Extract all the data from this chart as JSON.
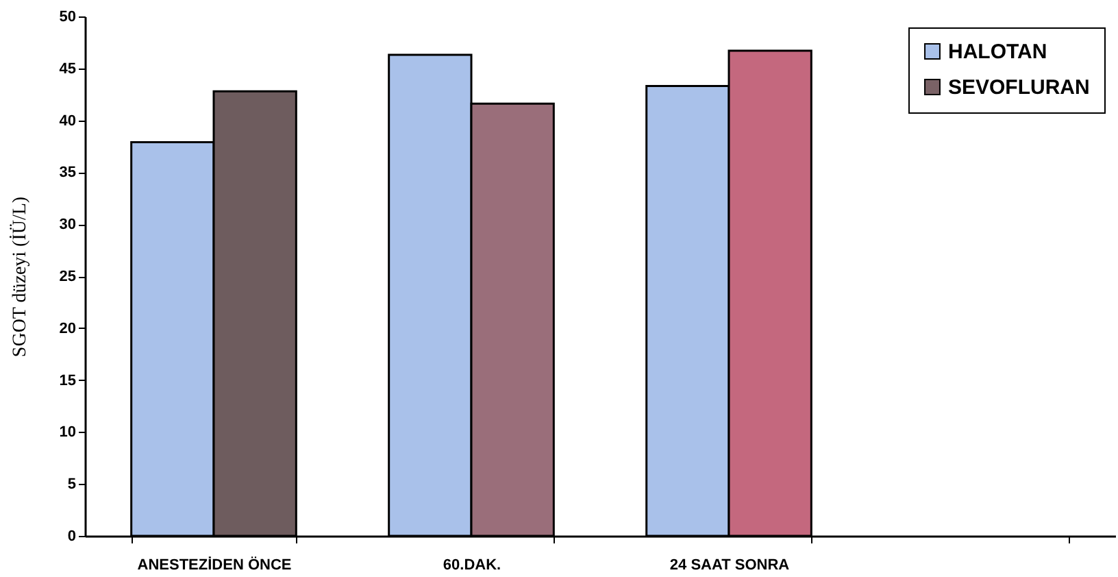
{
  "chart_data": {
    "type": "bar",
    "ylabel": "SGOT düzeyi (İÜ/L)",
    "categories": [
      "ANESTEZİDEN ÖNCE",
      "60.DAK.",
      "24 SAAT SONRA",
      null
    ],
    "series": [
      {
        "name": "HALOTAN",
        "color": "#a9c1ea",
        "values": [
          37.9,
          46.3,
          43.3,
          null
        ]
      },
      {
        "name": "SEVOFLURAN",
        "color": "#7a6266",
        "colors": [
          "#6e5c5e",
          "#9a6e7a",
          "#c4687e",
          null
        ],
        "values": [
          42.8,
          41.6,
          46.7,
          null
        ]
      }
    ],
    "ylim": [
      0,
      50
    ],
    "yticks": [
      0,
      5,
      10,
      15,
      20,
      25,
      30,
      35,
      40,
      45,
      50
    ],
    "grid": false,
    "legend": "top right"
  }
}
